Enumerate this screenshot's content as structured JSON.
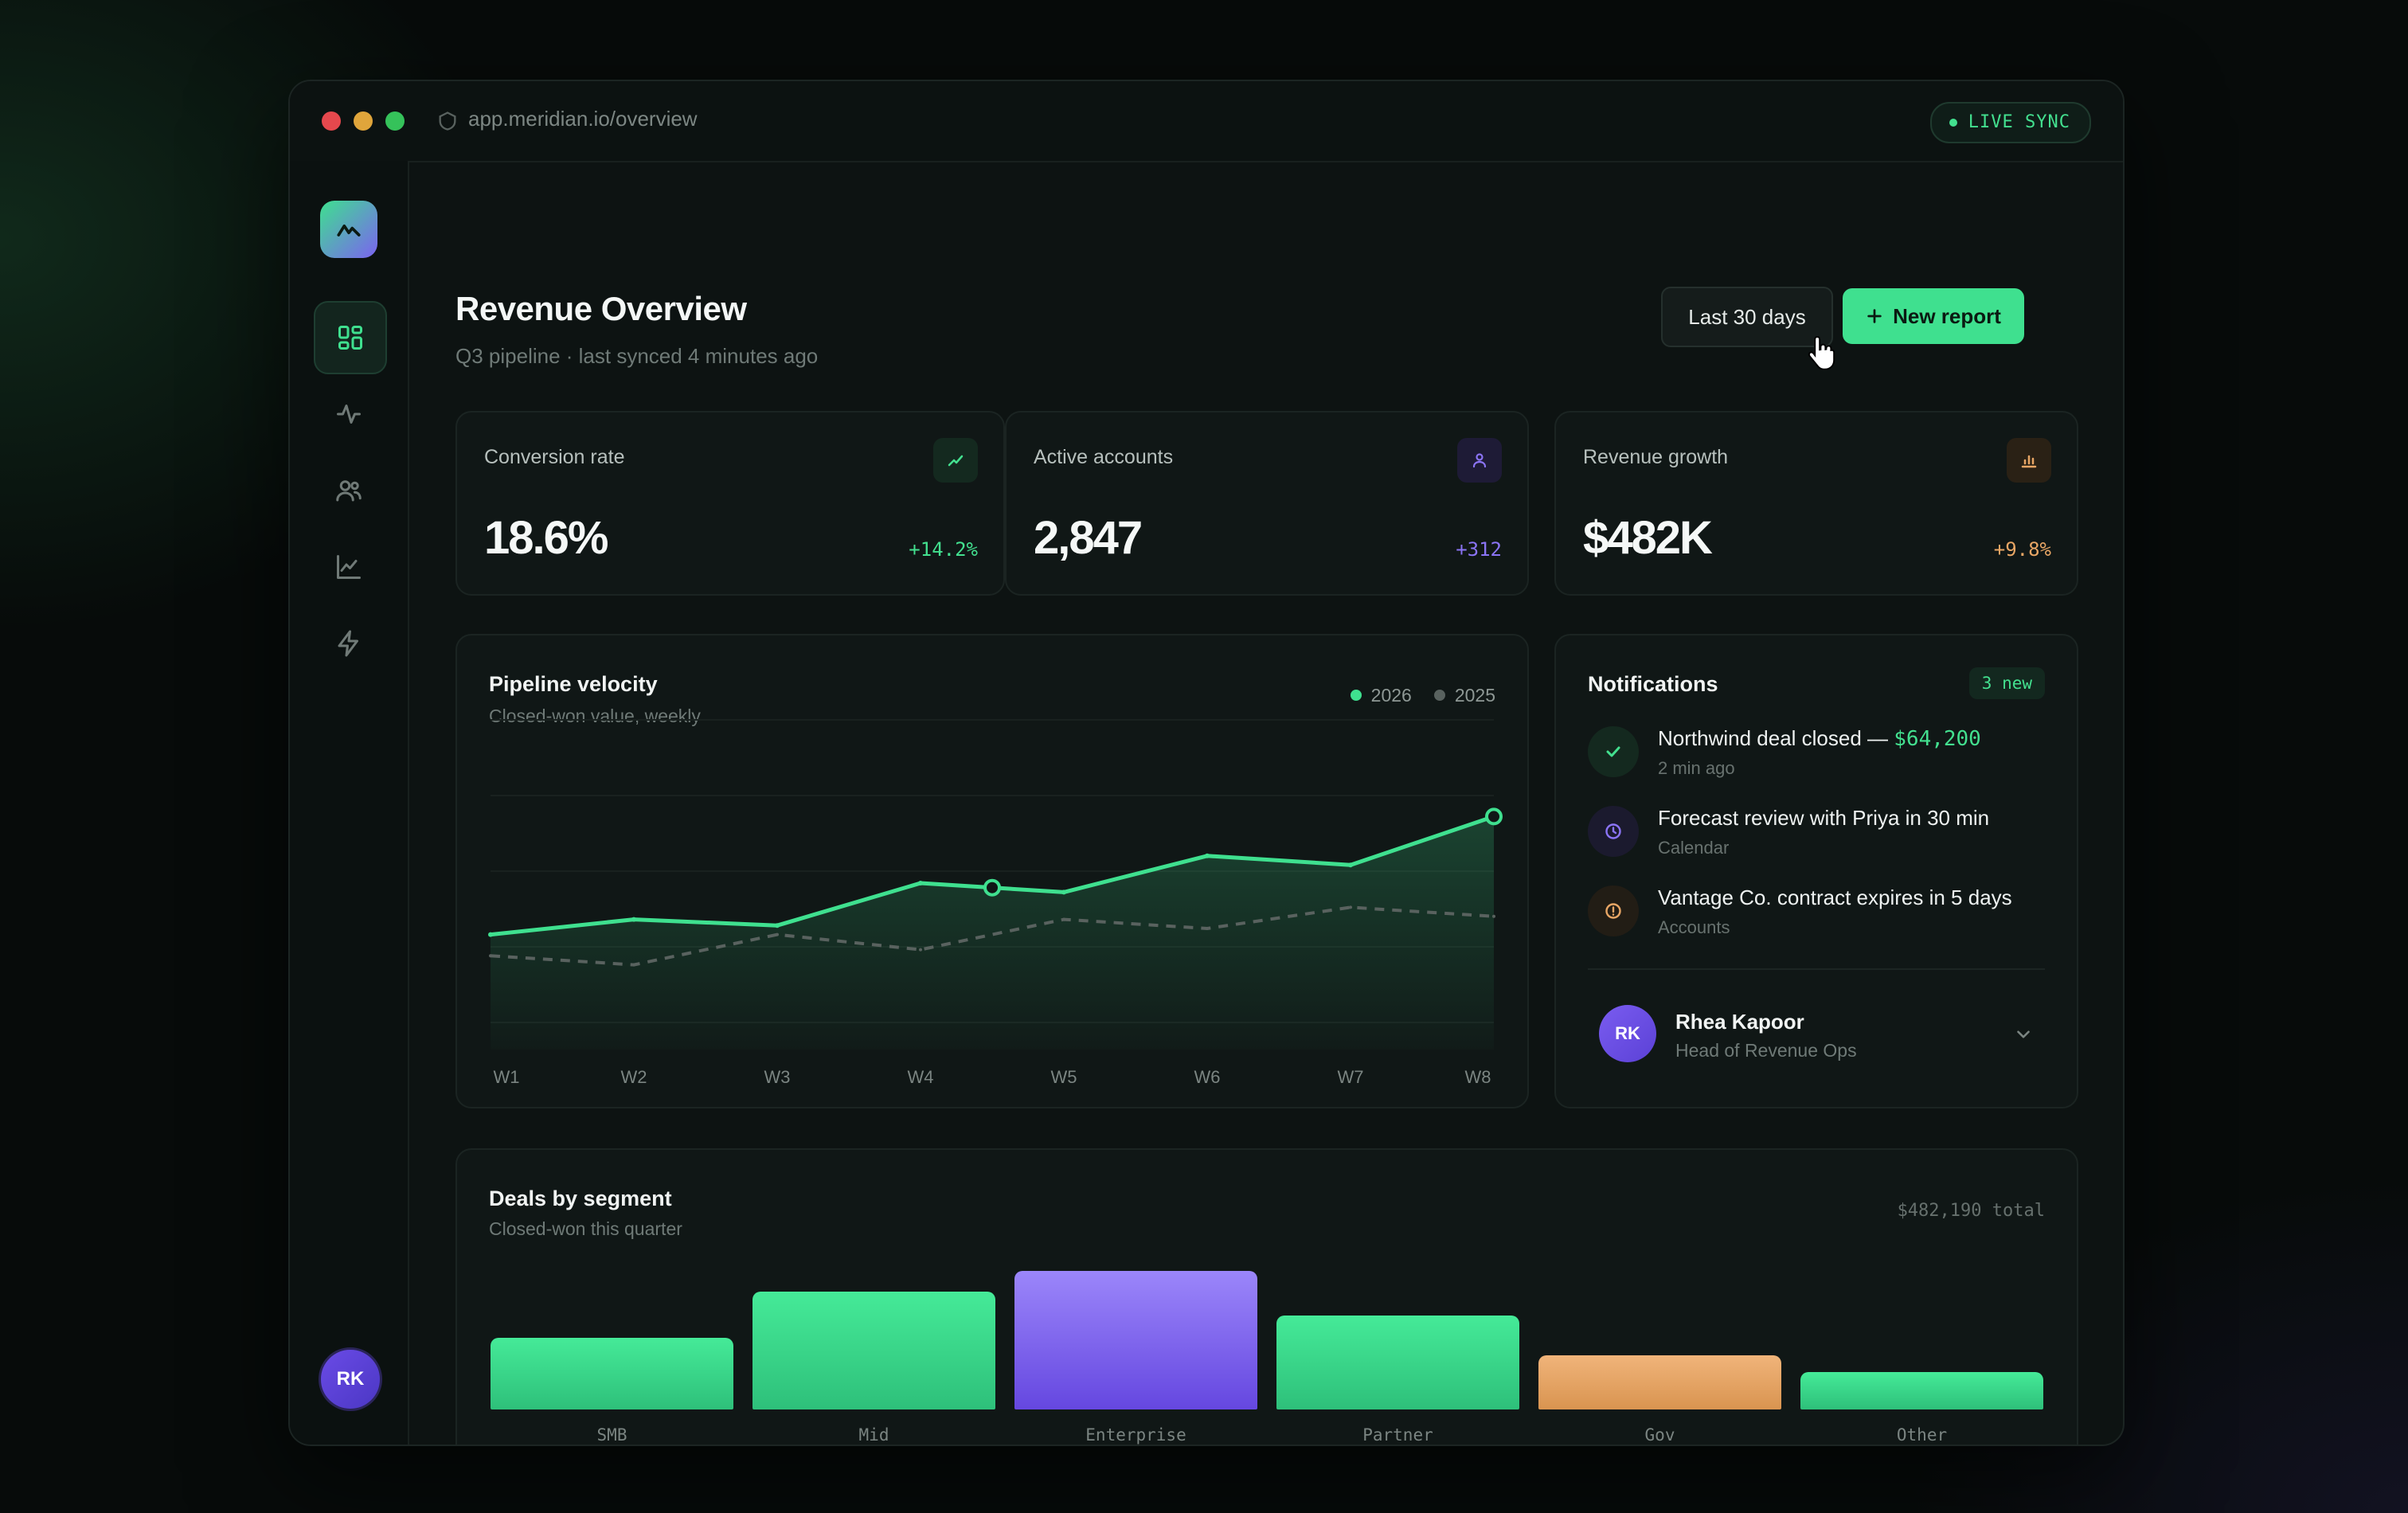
{
  "browser": {
    "url": "app.meridian.io/overview",
    "live_sync_label": "LIVE SYNC"
  },
  "sidebar": {
    "items": [
      {
        "name": "dashboard",
        "icon": "grid-icon",
        "active": true
      },
      {
        "name": "activity",
        "icon": "activity-icon"
      },
      {
        "name": "users",
        "icon": "users-icon"
      },
      {
        "name": "analytics",
        "icon": "line-chart-icon"
      },
      {
        "name": "automations",
        "icon": "bolt-icon"
      }
    ],
    "settings_icon": "gear-icon",
    "avatar_initials": "RK"
  },
  "header": {
    "title": "Revenue Overview",
    "subtitle": "Q3 pipeline · last synced 4 minutes ago",
    "range_button": "Last 30 days",
    "new_report_button": "New report"
  },
  "stats": [
    {
      "label": "Conversion rate",
      "value": "18.6%",
      "delta": "+14.2%",
      "color": "#43e08f",
      "icon": "trend-up-icon"
    },
    {
      "label": "Active accounts",
      "value": "2,847",
      "delta": "+312",
      "color": "#8b74f5",
      "icon": "user-icon"
    },
    {
      "label": "Revenue growth",
      "value": "$482K",
      "delta": "+9.8%",
      "color": "#e8a665",
      "icon": "bar-chart-icon"
    }
  ],
  "pipeline": {
    "title": "Pipeline velocity",
    "subtitle": "Closed-won value, weekly",
    "legend": [
      "2026",
      "2025"
    ]
  },
  "notifications": {
    "title": "Notifications",
    "badge": "3 new",
    "items": [
      {
        "title": "Northwind deal closed — ",
        "amount": "$64,200",
        "meta": "2 min ago",
        "icon": "check-icon",
        "color": "#43e08f"
      },
      {
        "title": "Forecast review with Priya in 30 min",
        "meta": "Calendar",
        "icon": "clock-icon",
        "color": "#8b74f5"
      },
      {
        "title": "Vantage Co. contract expires in 5 days",
        "meta": "Accounts",
        "icon": "alert-icon",
        "color": "#e8a665"
      }
    ],
    "profile": {
      "initials": "RK",
      "name": "Rhea Kapoor",
      "role": "Head of Revenue Ops"
    }
  },
  "segments": {
    "title": "Deals by segment",
    "subtitle": "Closed-won this quarter",
    "total": "$482,190 total"
  },
  "chart_data": [
    {
      "type": "area",
      "title": "Pipeline velocity",
      "subtitle": "Closed-won value, weekly",
      "categories": [
        "W1",
        "W2",
        "W3",
        "W4",
        "W5",
        "W6",
        "W7",
        "W8"
      ],
      "series": [
        {
          "name": "2026",
          "values": [
            38,
            43,
            41,
            55,
            52,
            64,
            61,
            77
          ],
          "color": "#3fe08f"
        },
        {
          "name": "2025",
          "values": [
            31,
            28,
            38,
            33,
            43,
            40,
            47,
            44
          ],
          "color": "#59625f"
        }
      ],
      "ylim": [
        0,
        100
      ],
      "grid": true,
      "legend": "top-right",
      "highlighted_points": [
        3.5,
        7
      ]
    },
    {
      "type": "bar",
      "title": "Deals by segment",
      "subtitle": "Closed-won this quarter",
      "categories": [
        "SMB",
        "Mid",
        "Enterprise",
        "Partner",
        "Gov",
        "Other"
      ],
      "values": [
        52,
        85,
        100,
        68,
        39,
        27
      ],
      "colors": [
        "#3fe08f",
        "#3fe08f",
        "#8b74f5",
        "#3fe08f",
        "#e8a665",
        "#3fe08f"
      ]
    }
  ]
}
